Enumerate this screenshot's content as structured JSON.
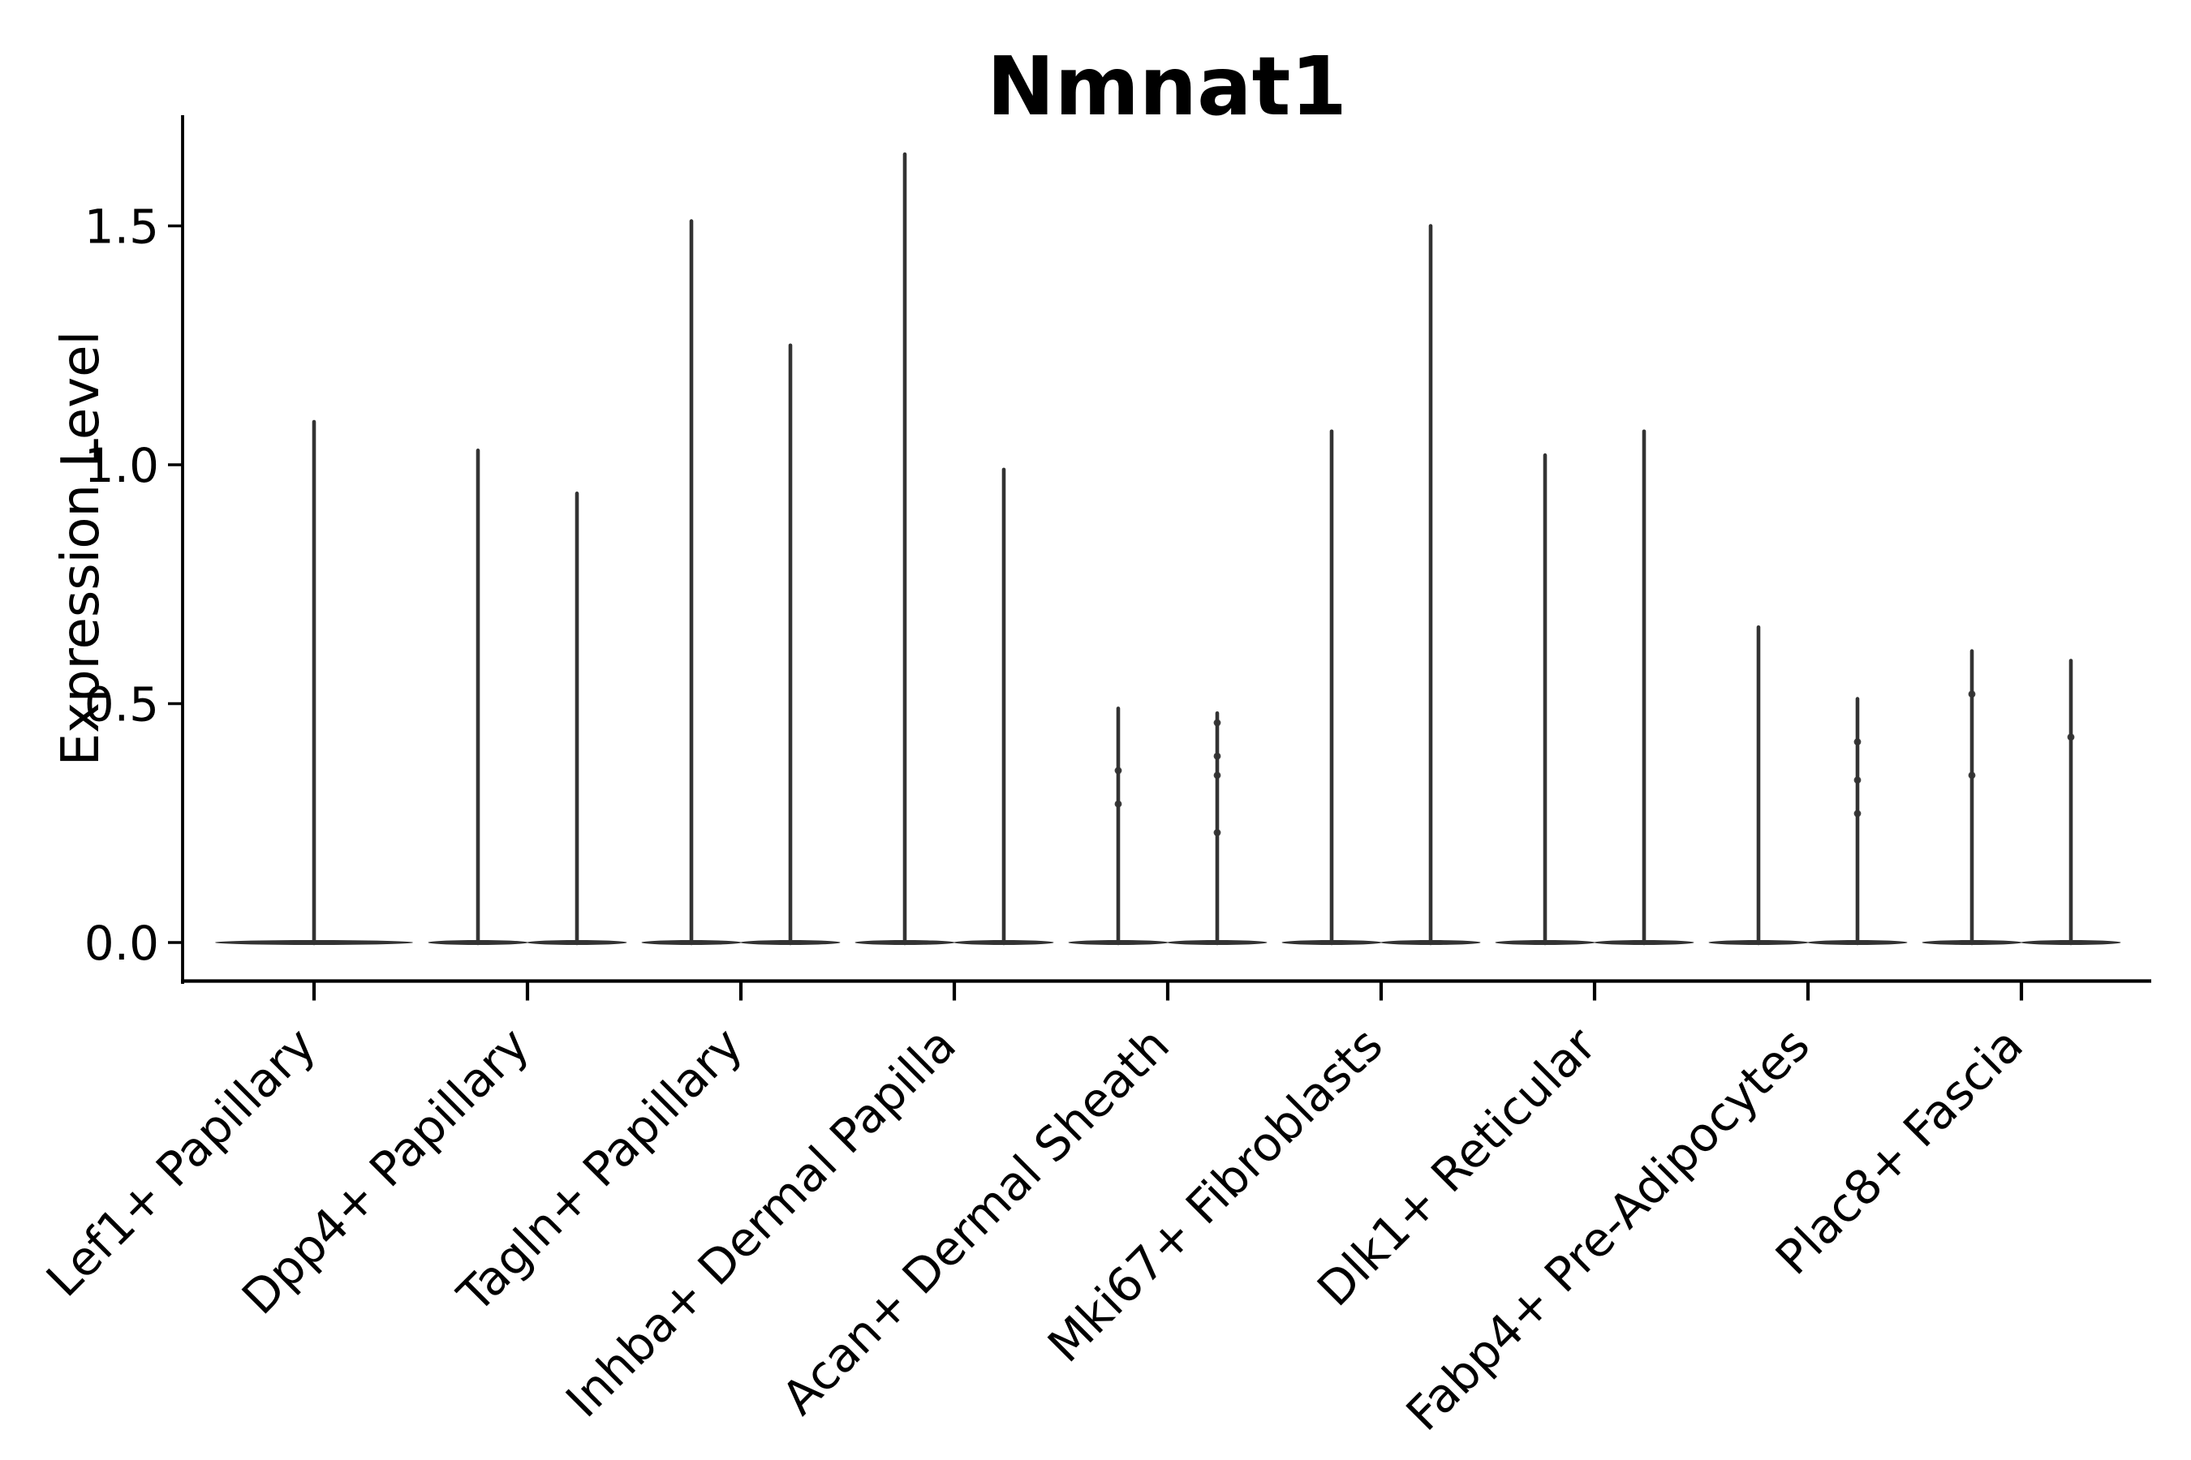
{
  "chart_data": {
    "type": "violin",
    "title": "Nmnat1",
    "xlabel": "",
    "ylabel": "Expression Level",
    "ytick_labels": [
      "0.0",
      "0.5",
      "1.0",
      "1.5"
    ],
    "ytick_values": [
      0.0,
      0.5,
      1.0,
      1.5
    ],
    "ylim": [
      -0.08,
      1.73
    ],
    "grid": false,
    "legend_position": "none",
    "x_tick_label_rotation_deg": 45,
    "violin_color": "#333333",
    "axis_color": "#000000",
    "background_color": "#ffffff",
    "categories": [
      "Lef1+ Papillary",
      "Dpp4+ Papillary",
      "Tagln+ Papillary",
      "Inhba+ Dermal Papilla",
      "Acan+ Dermal Sheath",
      "Mki67+ Fibroblasts",
      "Dlk1+ Reticular",
      "Fabp4+ Pre-Adipocytes",
      "Plac8+ Fascia"
    ],
    "series": [
      {
        "category": "Lef1+ Papillary",
        "violins": [
          {
            "max": 1.09,
            "points": []
          }
        ]
      },
      {
        "category": "Dpp4+ Papillary",
        "violins": [
          {
            "max": 1.03,
            "points": []
          },
          {
            "max": 0.94,
            "points": []
          }
        ]
      },
      {
        "category": "Tagln+ Papillary",
        "violins": [
          {
            "max": 1.51,
            "points": []
          },
          {
            "max": 1.25,
            "points": []
          }
        ]
      },
      {
        "category": "Inhba+ Dermal Papilla",
        "violins": [
          {
            "max": 1.65,
            "points": []
          },
          {
            "max": 0.99,
            "points": []
          }
        ]
      },
      {
        "category": "Acan+ Dermal Sheath",
        "violins": [
          {
            "max": 0.49,
            "points": [
              0.36,
              0.29
            ]
          },
          {
            "max": 0.48,
            "points": [
              0.46,
              0.39,
              0.35,
              0.23
            ]
          }
        ]
      },
      {
        "category": "Mki67+ Fibroblasts",
        "violins": [
          {
            "max": 1.07,
            "points": []
          },
          {
            "max": 1.5,
            "points": []
          }
        ]
      },
      {
        "category": "Dlk1+ Reticular",
        "violins": [
          {
            "max": 1.02,
            "points": []
          },
          {
            "max": 1.07,
            "points": []
          }
        ]
      },
      {
        "category": "Fabp4+ Pre-Adipocytes",
        "violins": [
          {
            "max": 0.66,
            "points": []
          },
          {
            "max": 0.51,
            "points": [
              0.42,
              0.34,
              0.27
            ]
          }
        ]
      },
      {
        "category": "Plac8+ Fascia",
        "violins": [
          {
            "max": 0.61,
            "points": [
              0.52,
              0.35
            ]
          },
          {
            "max": 0.59,
            "points": [
              0.43
            ]
          }
        ]
      }
    ],
    "violin_note": "Each violin collapses to a wide flat base at expression 0 with a thin spike up to its max value."
  }
}
